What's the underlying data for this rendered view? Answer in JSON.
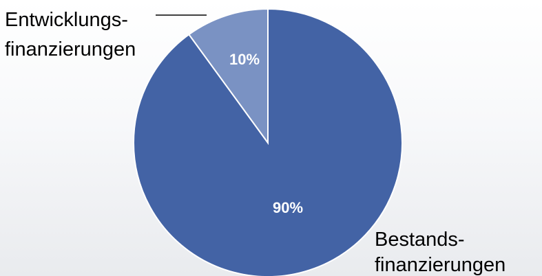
{
  "chart_data": {
    "type": "pie",
    "slices": [
      {
        "label_lines": [
          "Bestands-",
          "finanzierungen"
        ],
        "value": 90,
        "value_label": "90%",
        "color": "#4363a5"
      },
      {
        "label_lines": [
          "Entwicklungs-",
          "finanzierungen"
        ],
        "value": 10,
        "value_label": "10%",
        "color": "#7a92c3"
      }
    ],
    "start_angle": "12 o'clock",
    "direction": "counter-clockwise",
    "slice_border_color": "#ffffff",
    "leader_line_color": "#000000",
    "legend": "none"
  }
}
